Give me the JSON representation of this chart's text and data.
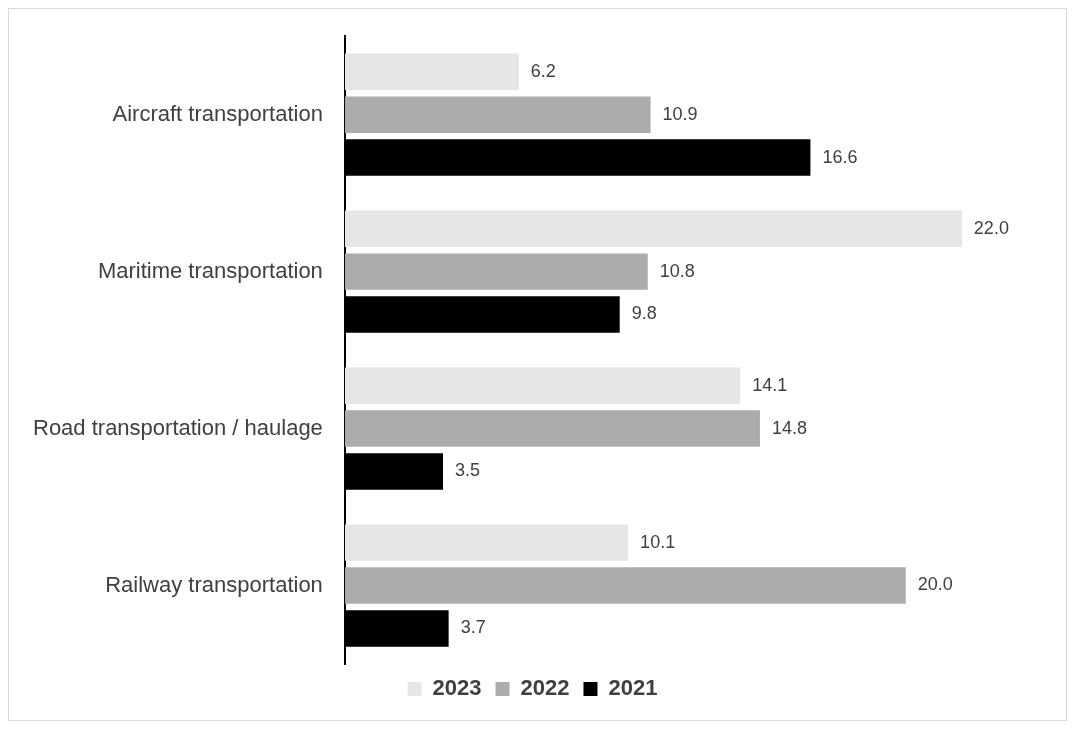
{
  "chart_data": {
    "type": "bar",
    "orientation": "horizontal",
    "categories": [
      "Aircraft transportation",
      "Maritime transportation",
      "Road transportation / haulage",
      "Railway transportation"
    ],
    "series": [
      {
        "name": "2023",
        "color": "#e6e6e6",
        "values": [
          6.2,
          22.0,
          14.1,
          10.1
        ],
        "value_labels": [
          "6.2",
          "22.0",
          "14.1",
          "10.1"
        ]
      },
      {
        "name": "2022",
        "color": "#aeabab",
        "values": [
          10.9,
          10.8,
          14.8,
          20.0
        ],
        "value_labels": [
          "10.9",
          "10.8",
          "14.8",
          "20.0"
        ]
      },
      {
        "name": "2021",
        "color": "#000000",
        "values": [
          16.6,
          9.8,
          3.5,
          3.7
        ],
        "value_labels": [
          "16.6",
          "9.8",
          "3.5",
          "3.7"
        ]
      }
    ],
    "legend": "bottom",
    "grid": false,
    "tick_labels": "y"
  }
}
